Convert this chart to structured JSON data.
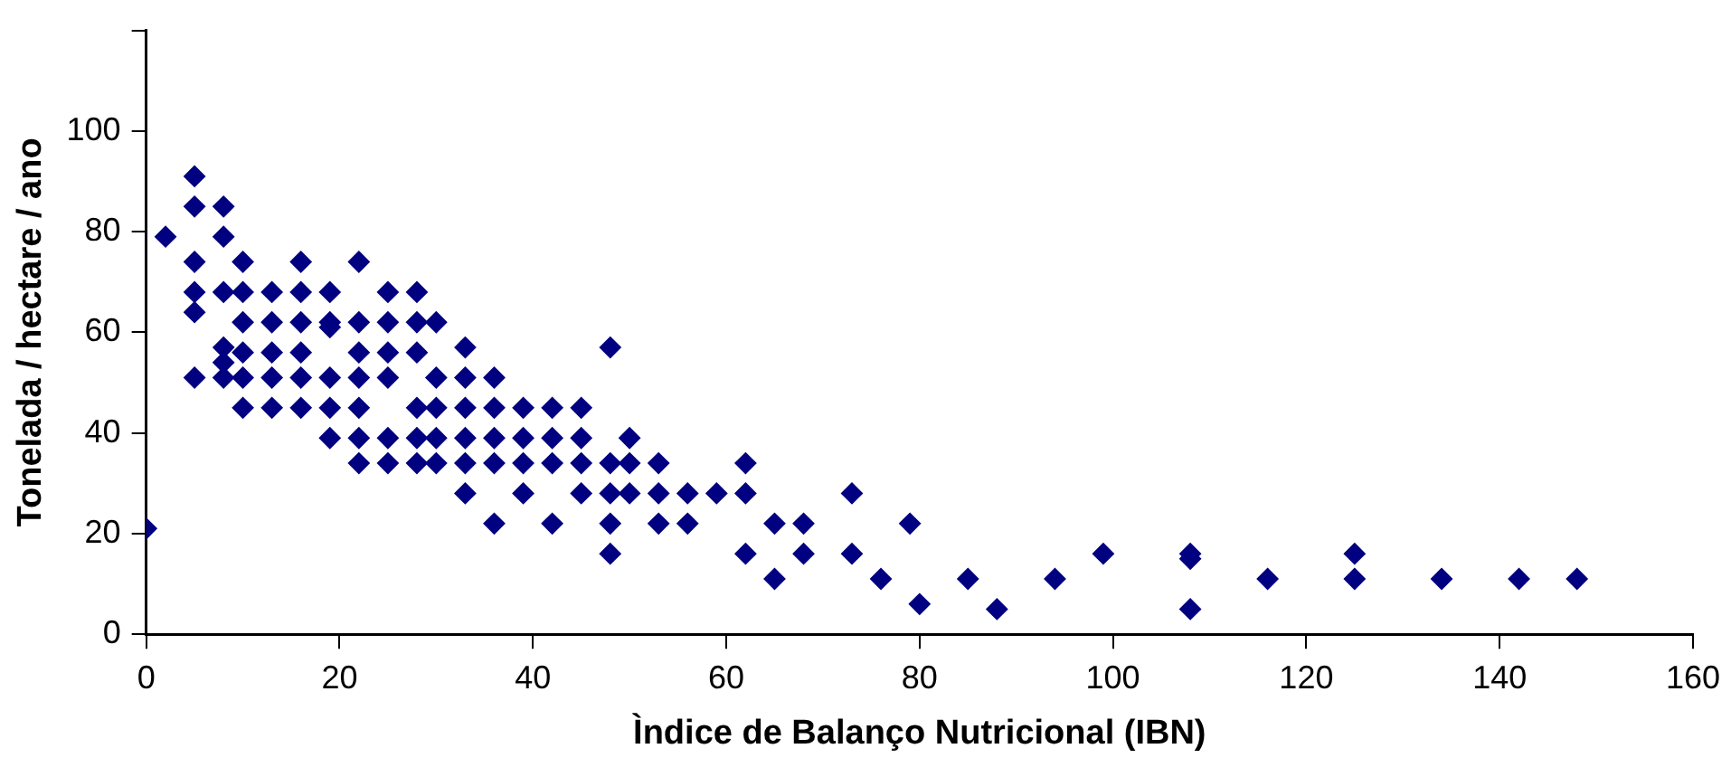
{
  "chart_data": {
    "type": "scatter",
    "xlabel": "Ìndice de Balanço Nutricional (IBN)",
    "ylabel": "Tonelada / hectare / ano",
    "x": [
      0,
      2,
      5,
      5,
      5,
      5,
      5,
      5,
      8,
      8,
      8,
      8,
      8,
      8,
      10,
      10,
      10,
      10,
      10,
      10,
      13,
      13,
      13,
      13,
      13,
      16,
      16,
      16,
      16,
      16,
      16,
      19,
      19,
      19,
      19,
      19,
      19,
      22,
      22,
      22,
      22,
      22,
      22,
      22,
      25,
      25,
      25,
      25,
      25,
      25,
      28,
      28,
      28,
      28,
      28,
      28,
      30,
      30,
      30,
      30,
      30,
      33,
      33,
      33,
      33,
      33,
      33,
      36,
      36,
      36,
      36,
      36,
      39,
      39,
      39,
      39,
      42,
      42,
      42,
      42,
      45,
      45,
      45,
      45,
      48,
      48,
      48,
      48,
      48,
      50,
      50,
      50,
      53,
      53,
      53,
      56,
      56,
      59,
      62,
      62,
      62,
      65,
      65,
      68,
      68,
      73,
      73,
      76,
      79,
      80,
      85,
      88,
      94,
      99,
      108,
      108,
      108,
      116,
      125,
      125,
      134,
      142,
      148
    ],
    "values": [
      21,
      79,
      91,
      85,
      74,
      68,
      51,
      64,
      85,
      79,
      68,
      57,
      54,
      51,
      74,
      68,
      62,
      56,
      51,
      45,
      68,
      62,
      56,
      51,
      45,
      74,
      68,
      62,
      56,
      51,
      45,
      68,
      62,
      61,
      51,
      45,
      39,
      74,
      62,
      56,
      51,
      45,
      39,
      34,
      68,
      62,
      56,
      51,
      39,
      34,
      68,
      62,
      56,
      45,
      39,
      34,
      62,
      51,
      45,
      39,
      34,
      57,
      51,
      45,
      39,
      34,
      28,
      51,
      45,
      39,
      34,
      22,
      45,
      39,
      34,
      28,
      45,
      39,
      34,
      22,
      45,
      39,
      34,
      28,
      57,
      34,
      28,
      22,
      16,
      39,
      34,
      28,
      34,
      28,
      22,
      28,
      22,
      28,
      34,
      28,
      16,
      22,
      11,
      22,
      16,
      28,
      16,
      11,
      22,
      6,
      11,
      5,
      11,
      16,
      16,
      15,
      5,
      11,
      16,
      11,
      11,
      11,
      11
    ],
    "color": "#000080",
    "marker": "diamond",
    "xlim": [
      0,
      160
    ],
    "xticks": [
      0,
      20,
      40,
      60,
      80,
      100,
      120,
      140,
      160
    ],
    "ylim": [
      0,
      120
    ],
    "yticks": [
      0,
      20,
      40,
      60,
      80,
      100,
      {
        "value": 120,
        "label": null
      }
    ],
    "grid": false,
    "legend": false
  }
}
